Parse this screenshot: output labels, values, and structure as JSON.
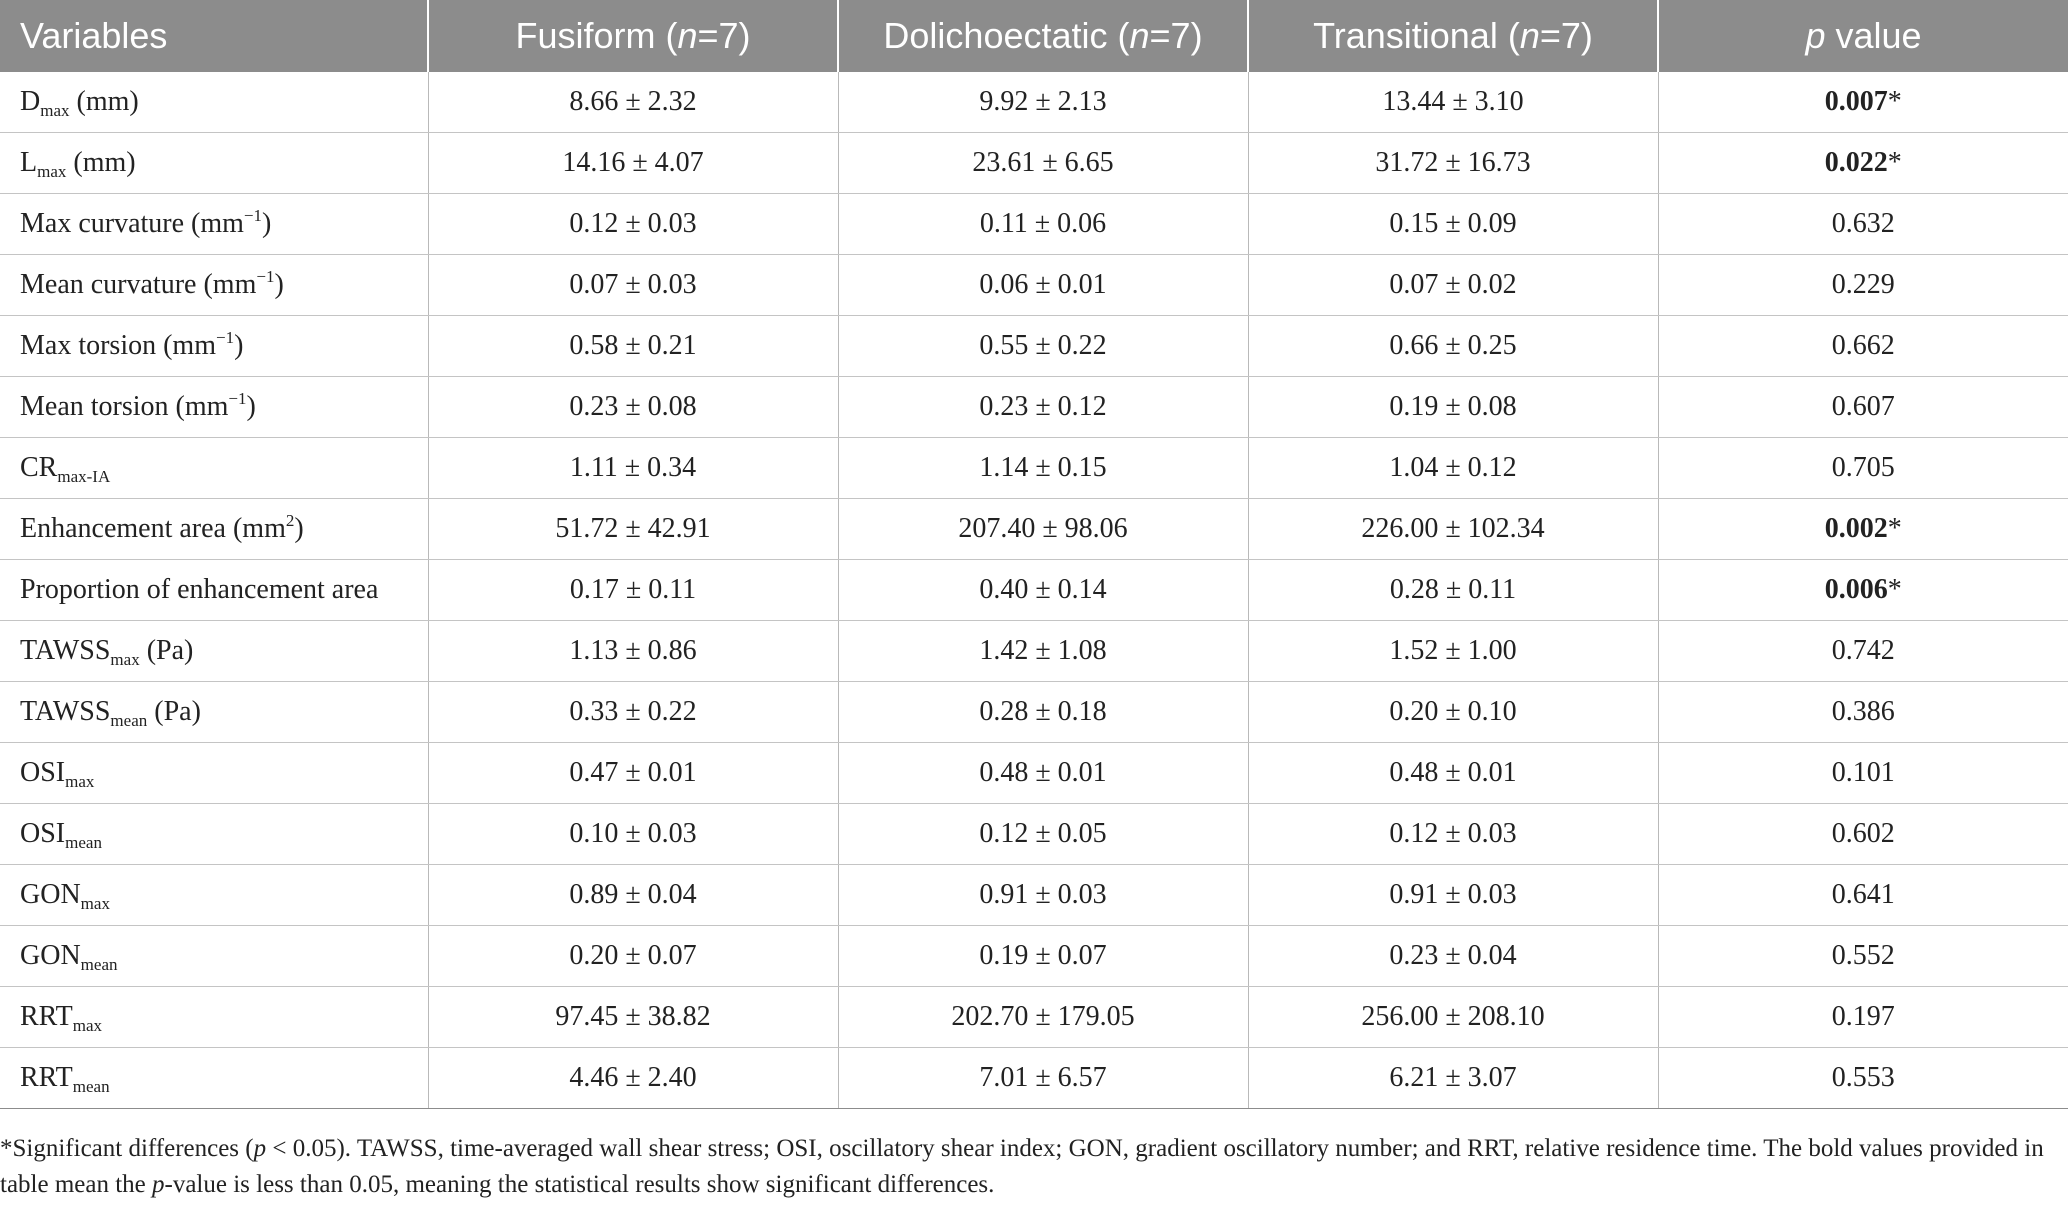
{
  "header": {
    "col0": "Variables",
    "col1_text": "Fusiform (",
    "col2_text": "Dolichoectatic (",
    "col3_text": "Transitional (",
    "n_italic": "n",
    "n_suffix": "=7)",
    "col4_p": "p",
    "col4_text": " value"
  },
  "rows": [
    {
      "var_main": "D",
      "var_sub": "max",
      "var_rest": " (mm)",
      "fusiform": "8.66 ± 2.32",
      "dolichoectatic": "9.92 ± 2.13",
      "transitional": "13.44 ± 3.10",
      "p": "0.007",
      "star": "*"
    },
    {
      "var_main": "L",
      "var_sub": "max",
      "var_rest": " (mm)",
      "fusiform": "14.16 ± 4.07",
      "dolichoectatic": "23.61 ± 6.65",
      "transitional": "31.72 ± 16.73",
      "p": "0.022",
      "star": "*"
    },
    {
      "var_main": "Max curvature (mm",
      "var_sup": "−1",
      "var_rest": ")",
      "fusiform": "0.12 ± 0.03",
      "dolichoectatic": "0.11 ± 0.06",
      "transitional": "0.15 ± 0.09",
      "p": "0.632"
    },
    {
      "var_main": "Mean curvature (mm",
      "var_sup": "−1",
      "var_rest": ")",
      "fusiform": "0.07 ± 0.03",
      "dolichoectatic": "0.06 ± 0.01",
      "transitional": "0.07 ± 0.02",
      "p": "0.229"
    },
    {
      "var_main": "Max torsion (mm",
      "var_sup": "−1",
      "var_rest": ")",
      "fusiform": "0.58 ± 0.21",
      "dolichoectatic": "0.55 ± 0.22",
      "transitional": "0.66 ± 0.25",
      "p": "0.662"
    },
    {
      "var_main": "Mean torsion (mm",
      "var_sup": "−1",
      "var_rest": ")",
      "fusiform": "0.23 ± 0.08",
      "dolichoectatic": "0.23 ± 0.12",
      "transitional": "0.19 ± 0.08",
      "p": "0.607"
    },
    {
      "var_main": "CR",
      "var_sub": "max-IA",
      "fusiform": "1.11 ± 0.34",
      "dolichoectatic": "1.14 ± 0.15",
      "transitional": "1.04 ± 0.12",
      "p": "0.705"
    },
    {
      "var_main": "Enhancement area (mm",
      "var_sup": "2",
      "var_rest": ")",
      "fusiform": "51.72 ± 42.91",
      "dolichoectatic": "207.40 ± 98.06",
      "transitional": "226.00 ± 102.34",
      "p": "0.002",
      "star": "*"
    },
    {
      "var_main": "Proportion of enhancement area",
      "fusiform": "0.17 ± 0.11",
      "dolichoectatic": "0.40 ± 0.14",
      "transitional": "0.28 ± 0.11",
      "p": "0.006",
      "star": "*"
    },
    {
      "var_main": "TAWSS",
      "var_sub": "max",
      "var_rest": " (Pa)",
      "fusiform": "1.13 ± 0.86",
      "dolichoectatic": "1.42 ± 1.08",
      "transitional": "1.52 ± 1.00",
      "p": "0.742"
    },
    {
      "var_main": "TAWSS",
      "var_sub": "mean",
      "var_rest": " (Pa)",
      "fusiform": "0.33 ± 0.22",
      "dolichoectatic": "0.28 ± 0.18",
      "transitional": "0.20 ± 0.10",
      "p": "0.386"
    },
    {
      "var_main": "OSI",
      "var_sub": "max",
      "fusiform": "0.47 ± 0.01",
      "dolichoectatic": "0.48 ± 0.01",
      "transitional": "0.48 ± 0.01",
      "p": "0.101"
    },
    {
      "var_main": "OSI",
      "var_sub": "mean",
      "fusiform": "0.10 ± 0.03",
      "dolichoectatic": "0.12 ± 0.05",
      "transitional": "0.12 ± 0.03",
      "p": "0.602"
    },
    {
      "var_main": "GON",
      "var_sub": "max",
      "fusiform": "0.89 ± 0.04",
      "dolichoectatic": "0.91 ± 0.03",
      "transitional": "0.91 ± 0.03",
      "p": "0.641"
    },
    {
      "var_main": "GON",
      "var_sub": "mean",
      "fusiform": "0.20 ± 0.07",
      "dolichoectatic": "0.19 ± 0.07",
      "transitional": "0.23 ± 0.04",
      "p": "0.552"
    },
    {
      "var_main": "RRT",
      "var_sub": "max",
      "fusiform": "97.45 ± 38.82",
      "dolichoectatic": "202.70 ± 179.05",
      "transitional": "256.00 ± 208.10",
      "p": "0.197"
    },
    {
      "var_main": "RRT",
      "var_sub": "mean",
      "fusiform": "4.46 ± 2.40",
      "dolichoectatic": "7.01 ± 6.57",
      "transitional": "6.21 ± 3.07",
      "p": "0.553"
    }
  ],
  "footnote": {
    "part1": "*Significant differences (",
    "p1": "p",
    "part2": " < 0.05). TAWSS, time-averaged wall shear stress; OSI, oscillatory shear index; GON, gradient oscillatory number; and RRT, relative residence time. The bold values provided in table mean the ",
    "p2": "p",
    "part3": "-value is less than 0.05, meaning the statistical results show significant differences."
  },
  "colors": {
    "header_bg": "#8c8c8c",
    "header_text": "#ffffff",
    "body_text": "#222222",
    "grid_line": "#c4c4c4"
  }
}
